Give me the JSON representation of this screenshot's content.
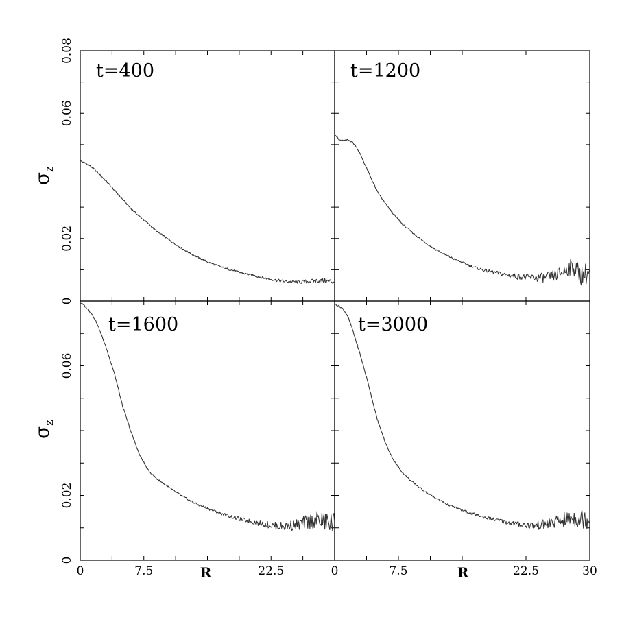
{
  "chart_data": [
    {
      "type": "line",
      "panel_label": "t=400",
      "ylabel": "σ",
      "ylabel_sub": "z",
      "xlim": [
        0,
        30
      ],
      "ylim": [
        0,
        0.08
      ],
      "x_ticks": [],
      "y_ticks": [
        "0",
        "0.02",
        "0.06",
        "0.08"
      ],
      "y_tick_values": [
        0,
        0.02,
        0.06,
        0.08
      ],
      "x": [
        0,
        0.5,
        1,
        1.5,
        2,
        3,
        4,
        5,
        6,
        7,
        8,
        9,
        10,
        11,
        12,
        13,
        14,
        15,
        16,
        17,
        18,
        19,
        20,
        21,
        22,
        23,
        24,
        25,
        26,
        27,
        28,
        29,
        30
      ],
      "values": [
        0.0448,
        0.0442,
        0.0435,
        0.0425,
        0.0412,
        0.0385,
        0.0355,
        0.0325,
        0.0295,
        0.027,
        0.0248,
        0.0223,
        0.0205,
        0.0185,
        0.0168,
        0.0152,
        0.0138,
        0.0125,
        0.0115,
        0.0105,
        0.0098,
        0.009,
        0.0084,
        0.0078,
        0.0072,
        0.0067,
        0.0063,
        0.0062,
        0.0061,
        0.0063,
        0.0065,
        0.0064,
        0.0062
      ]
    },
    {
      "type": "line",
      "panel_label": "t=1200",
      "xlim": [
        0,
        30
      ],
      "ylim": [
        0,
        0.08
      ],
      "x_ticks": [],
      "y_ticks": [],
      "x": [
        0,
        0.5,
        1,
        1.5,
        2,
        2.5,
        3,
        4,
        5,
        6,
        7,
        8,
        9,
        10,
        11,
        12,
        13,
        14,
        15,
        16,
        17,
        18,
        19,
        20,
        21,
        22,
        23,
        24,
        25,
        26,
        27,
        28,
        29,
        30
      ],
      "values": [
        0.0535,
        0.0515,
        0.0512,
        0.0515,
        0.051,
        0.0495,
        0.047,
        0.041,
        0.035,
        0.031,
        0.0275,
        0.0245,
        0.0222,
        0.02,
        0.018,
        0.0163,
        0.0148,
        0.0135,
        0.0123,
        0.0112,
        0.0103,
        0.0096,
        0.009,
        0.0085,
        0.008,
        0.0077,
        0.0075,
        0.0074,
        0.0076,
        0.0082,
        0.0095,
        0.0112,
        0.0082,
        0.0092
      ]
    },
    {
      "type": "line",
      "panel_label": "t=1600",
      "ylabel": "σ",
      "ylabel_sub": "z",
      "xlim": [
        0,
        30
      ],
      "ylim": [
        0,
        0.08
      ],
      "x_ticks": [
        "0",
        "7.5",
        "22.5"
      ],
      "x_tick_values": [
        0,
        7.5,
        22.5
      ],
      "xlabel": "R",
      "y_ticks": [
        "0",
        "0.02",
        "0.06"
      ],
      "y_tick_values": [
        0,
        0.02,
        0.06
      ],
      "x": [
        0,
        0.5,
        1,
        1.5,
        2,
        3,
        4,
        5,
        6,
        7,
        8,
        9,
        10,
        11,
        12,
        13,
        14,
        15,
        16,
        17,
        18,
        19,
        20,
        21,
        22,
        23,
        24,
        25,
        26,
        27,
        28,
        29,
        30
      ],
      "values": [
        0.0795,
        0.0785,
        0.0772,
        0.0755,
        0.073,
        0.066,
        0.058,
        0.0475,
        0.0395,
        0.0325,
        0.0278,
        0.0252,
        0.0233,
        0.0215,
        0.0198,
        0.0183,
        0.017,
        0.016,
        0.015,
        0.0141,
        0.0133,
        0.0126,
        0.012,
        0.0115,
        0.011,
        0.0106,
        0.0105,
        0.0107,
        0.0112,
        0.012,
        0.0125,
        0.0118,
        0.0113
      ]
    },
    {
      "type": "line",
      "panel_label": "t=3000",
      "xlim": [
        0,
        30
      ],
      "ylim": [
        0,
        0.08
      ],
      "x_ticks": [
        "0",
        "7.5",
        "22.5",
        "30"
      ],
      "x_tick_values": [
        0,
        7.5,
        22.5,
        30
      ],
      "xlabel": "R",
      "y_ticks": [],
      "x": [
        0,
        0.5,
        1,
        1.5,
        2,
        3,
        4,
        5,
        6,
        7,
        8,
        9,
        10,
        11,
        12,
        13,
        14,
        15,
        16,
        17,
        18,
        19,
        20,
        21,
        22,
        23,
        24,
        25,
        26,
        27,
        28,
        29,
        30
      ],
      "values": [
        0.079,
        0.0785,
        0.0775,
        0.0755,
        0.072,
        0.0635,
        0.054,
        0.0435,
        0.036,
        0.0305,
        0.027,
        0.0244,
        0.0224,
        0.0205,
        0.019,
        0.0176,
        0.0164,
        0.0154,
        0.0145,
        0.0137,
        0.013,
        0.0124,
        0.0119,
        0.0114,
        0.011,
        0.0108,
        0.0108,
        0.0112,
        0.0118,
        0.0125,
        0.0132,
        0.0128,
        0.0135
      ]
    }
  ]
}
